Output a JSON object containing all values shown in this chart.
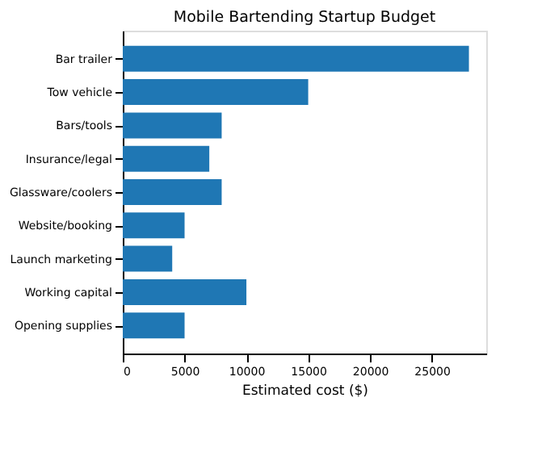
{
  "chart_data": {
    "type": "bar",
    "orientation": "horizontal",
    "title": "Mobile Bartending Startup Budget",
    "xlabel": "Estimated cost ($)",
    "categories": [
      "Bar trailer",
      "Tow vehicle",
      "Bars/tools",
      "Insurance/legal",
      "Glassware/coolers",
      "Website/booking",
      "Launch marketing",
      "Working capital",
      "Opening supplies"
    ],
    "values": [
      28000,
      15000,
      8000,
      7000,
      8000,
      5000,
      4000,
      10000,
      5000
    ],
    "color": "#1f77b4",
    "xlim": [
      0,
      29400
    ],
    "xticks": [
      0,
      5000,
      10000,
      15000,
      20000,
      25000
    ],
    "grid": false
  }
}
